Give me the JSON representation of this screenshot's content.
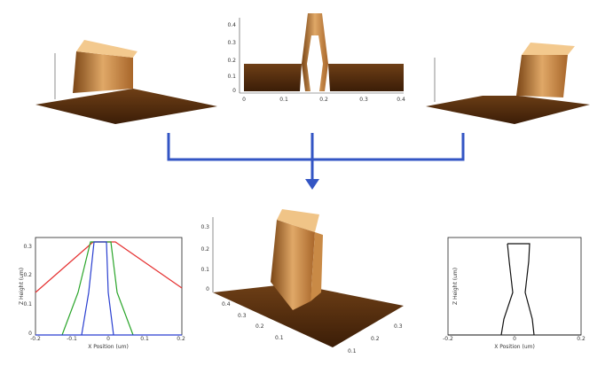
{
  "panels": {
    "top_center": {
      "y_ticks": [
        "0.4",
        "0.3",
        "0.2",
        "0.1",
        "0"
      ],
      "x_ticks": [
        "0",
        "0.1",
        "0.2",
        "0.3",
        "0.4"
      ]
    },
    "bottom_left": {
      "x_label": "X Position (um)",
      "y_label": "Z Height (um)",
      "x_ticks": [
        "-0.2",
        "-0.1",
        "0",
        "0.1",
        "0.2"
      ],
      "y_ticks": [
        "0.3",
        "0.2",
        "0.1",
        "0"
      ]
    },
    "bottom_center": {
      "z_ticks": [
        "0.3",
        "0.2",
        "0.1",
        "0"
      ],
      "x_ticks": [
        "0.4",
        "0.3",
        "0.2",
        "0.1"
      ],
      "y_ticks": [
        "0.1",
        "0.2",
        "0.3"
      ]
    },
    "bottom_right": {
      "x_label": "X Position (um)",
      "y_label": "Z Height (um)",
      "x_ticks": [
        "-0.2",
        "0",
        "0.2"
      ]
    }
  }
}
